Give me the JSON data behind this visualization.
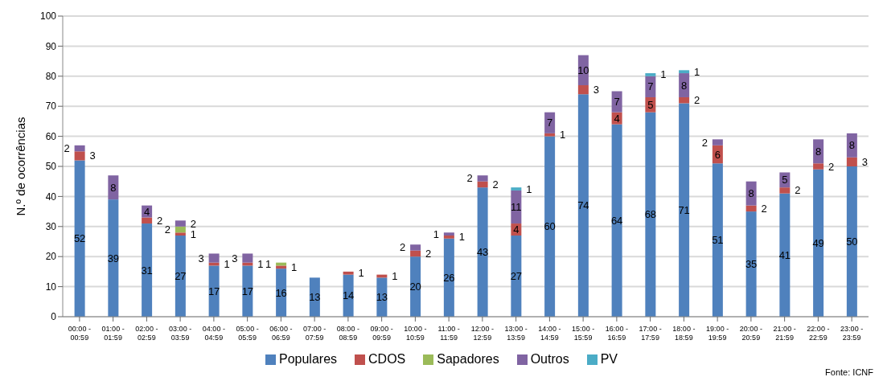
{
  "chart_data": {
    "type": "bar",
    "stacked": true,
    "ylabel": "N.º de ocorrências",
    "categories": [
      "00:00 - 00:59",
      "01:00 - 01:59",
      "02:00 - 02:59",
      "03:00 - 03:59",
      "04:00 - 04:59",
      "05:00 - 05:59",
      "06:00 - 06:59",
      "07:00 - 07:59",
      "08:00 - 08:59",
      "09:00 - 09:59",
      "10:00 - 10:59",
      "11:00 - 11:59",
      "12:00 - 12:59",
      "13:00 - 13:59",
      "14:00 - 14:59",
      "15:00 - 15:59",
      "16:00 - 16:59",
      "17:00 - 17:59",
      "18:00 - 18:59",
      "19:00 - 19:59",
      "20:00 - 20:59",
      "21:00 - 21:59",
      "22:00 - 22:59",
      "23:00 - 23:59"
    ],
    "series": [
      {
        "name": "Populares",
        "color": "#4f81bd",
        "values": [
          52,
          39,
          31,
          27,
          17,
          17,
          16,
          13,
          14,
          13,
          20,
          26,
          43,
          27,
          60,
          74,
          64,
          68,
          71,
          51,
          35,
          41,
          49,
          50
        ],
        "value_labels": [
          "52",
          "39",
          "31",
          "27",
          "17",
          "17",
          "16",
          "13",
          "14",
          "13",
          "20",
          "26",
          "43",
          "27",
          "60",
          "74",
          "64",
          "68",
          "71",
          "51",
          "35",
          "41",
          "49",
          "50"
        ]
      },
      {
        "name": "CDOS",
        "color": "#c0504d",
        "values": [
          3,
          0,
          2,
          1,
          1,
          1,
          1,
          0,
          1,
          1,
          2,
          1,
          2,
          4,
          1,
          3,
          4,
          5,
          2,
          6,
          2,
          2,
          2,
          3
        ],
        "value_labels": [
          "3",
          null,
          "2",
          "1",
          "1",
          "1",
          "1",
          null,
          "1",
          "1",
          "2",
          "1",
          "2",
          "4",
          "1",
          "3",
          "4",
          "5",
          "2",
          "6",
          "2",
          "2",
          "2",
          "3"
        ]
      },
      {
        "name": "Sapadores",
        "color": "#9bbb59",
        "values": [
          0,
          0,
          0,
          2,
          0,
          0,
          1,
          0,
          0,
          0,
          0,
          0,
          0,
          0,
          0,
          0,
          0,
          0,
          0,
          0,
          0,
          0,
          0,
          0
        ],
        "value_labels": [
          null,
          null,
          null,
          "2",
          null,
          null,
          "1",
          null,
          null,
          null,
          null,
          null,
          null,
          null,
          null,
          null,
          null,
          null,
          null,
          null,
          null,
          null,
          null,
          null
        ]
      },
      {
        "name": "Outros",
        "color": "#8064a2",
        "values": [
          2,
          8,
          4,
          2,
          3,
          3,
          0,
          0,
          0,
          0,
          2,
          1,
          2,
          11,
          7,
          10,
          7,
          7,
          8,
          2,
          8,
          5,
          8,
          8
        ],
        "value_labels": [
          "2",
          "8",
          "4",
          "2",
          "3",
          "3",
          null,
          null,
          null,
          null,
          "2",
          "1",
          "2",
          "11",
          "7",
          "10",
          "7",
          "7",
          "8",
          "2",
          "8",
          "5",
          "8",
          "8"
        ]
      },
      {
        "name": "PV",
        "color": "#4bacc6",
        "values": [
          0,
          0,
          0,
          0,
          0,
          0,
          0,
          0,
          0,
          0,
          0,
          0,
          0,
          1,
          0,
          0,
          0,
          1,
          1,
          0,
          0,
          0,
          0,
          0
        ],
        "value_labels": [
          null,
          null,
          null,
          null,
          null,
          null,
          null,
          null,
          null,
          null,
          null,
          null,
          null,
          "1",
          null,
          null,
          null,
          "1",
          "1",
          null,
          null,
          null,
          null,
          null
        ]
      }
    ],
    "ylim": [
      0,
      100
    ],
    "yticks": [
      0,
      10,
      20,
      30,
      40,
      50,
      60,
      70,
      80,
      90,
      100
    ],
    "grid": "y",
    "legend": "bottom",
    "annotations": [
      "Fonte: ICNF"
    ]
  }
}
